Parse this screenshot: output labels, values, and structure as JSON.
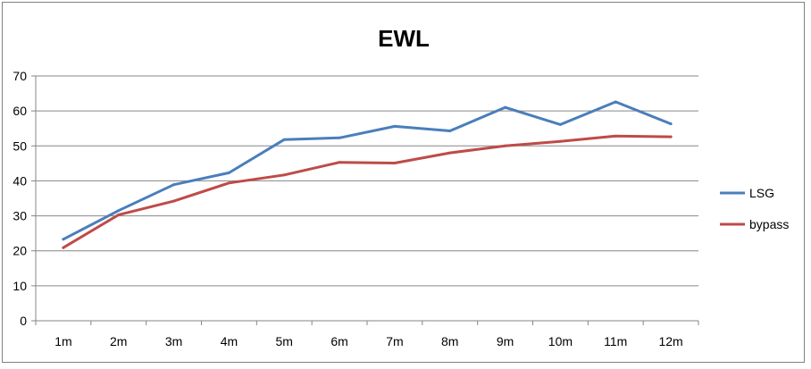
{
  "chart_data": {
    "type": "line",
    "title": "EWL",
    "xlabel": "",
    "ylabel": "",
    "categories": [
      "1m",
      "2m",
      "3m",
      "4m",
      "5m",
      "6m",
      "7m",
      "8m",
      "9m",
      "10m",
      "11m",
      "12m"
    ],
    "ylim": [
      0,
      70
    ],
    "yticks": [
      0,
      10,
      20,
      30,
      40,
      50,
      60,
      70
    ],
    "grid": true,
    "legend": "right",
    "series": [
      {
        "name": "LSG",
        "color": "#4a7ebb",
        "values": [
          23.3,
          31.5,
          38.9,
          42.3,
          51.8,
          52.3,
          55.6,
          54.3,
          61.0,
          56.1,
          62.6,
          56.3
        ]
      },
      {
        "name": "bypass",
        "color": "#be4b48",
        "values": [
          20.9,
          30.3,
          34.2,
          39.4,
          41.7,
          45.3,
          45.1,
          48.0,
          50.0,
          51.3,
          52.8,
          52.6
        ]
      }
    ]
  }
}
